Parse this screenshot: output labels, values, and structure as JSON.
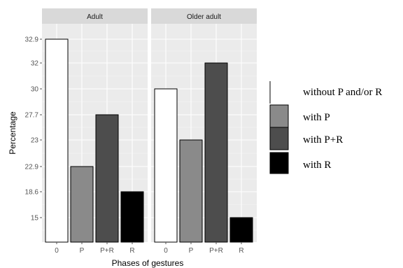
{
  "chart_data": {
    "type": "bar",
    "xlabel": "Phases of gestures",
    "ylabel": "Percentage",
    "categories": [
      "0",
      "P",
      "P+R",
      "R"
    ],
    "y_ticks": [
      "15",
      "18.6",
      "22.9",
      "23",
      "27.7",
      "30",
      "32",
      "32.9"
    ],
    "panels": [
      {
        "name": "Adult",
        "values": [
          "32.9",
          "22.9",
          "27.7",
          "18.6"
        ]
      },
      {
        "name": "Older adult",
        "values": [
          "30",
          "23",
          "32",
          "15"
        ]
      }
    ],
    "legend": [
      {
        "label": "without P and/or R",
        "color": "#ffffff"
      },
      {
        "label": "with P",
        "color": "#8a8a8a"
      },
      {
        "label": "with P+R",
        "color": "#4d4d4d"
      },
      {
        "label": "with R",
        "color": "#000000"
      }
    ],
    "legend_placement": "right",
    "grid": true,
    "panel_background": "#ebebeb",
    "strip_background": "#d9d9d9"
  }
}
